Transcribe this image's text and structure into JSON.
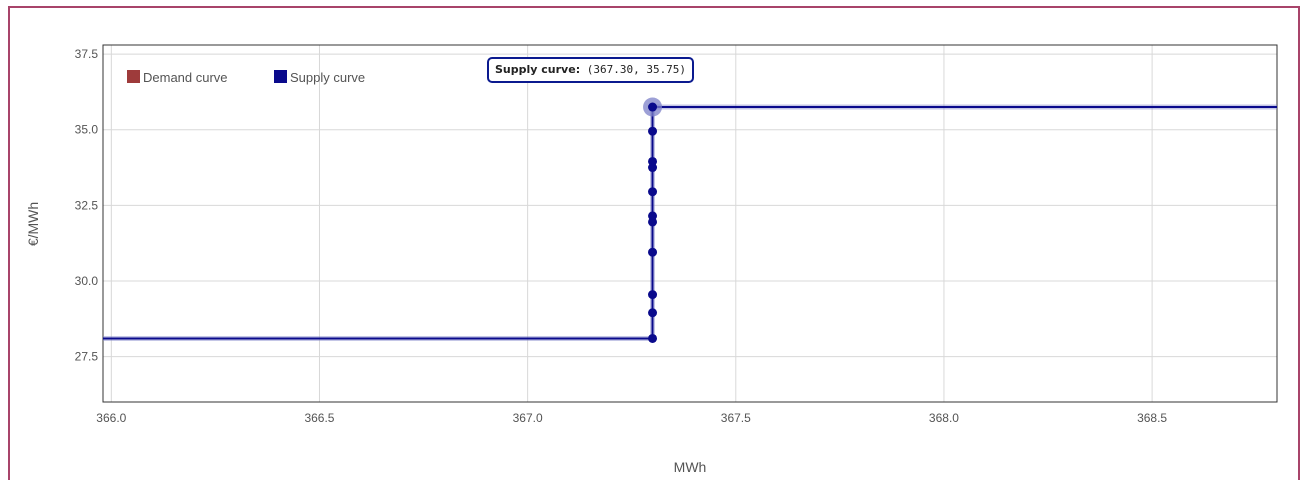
{
  "chart_data": {
    "type": "line",
    "title": "",
    "xlabel": "MWh",
    "ylabel": "€/MWh",
    "xlim": [
      365.98,
      368.8
    ],
    "ylim": [
      26.0,
      37.8
    ],
    "grid": true,
    "legend_position": "top-left",
    "x_ticks": [
      "366.0",
      "366.5",
      "367.0",
      "367.5",
      "368.0",
      "368.5"
    ],
    "y_ticks": [
      "27.5",
      "30.0",
      "32.5",
      "35.0",
      "37.5"
    ],
    "series": [
      {
        "name": "Demand curve",
        "color": "#9e3b3b",
        "x": [],
        "y": []
      },
      {
        "name": "Supply curve",
        "color": "#0a0a8c",
        "x": [
          365.98,
          367.3,
          367.3,
          367.3,
          367.3,
          367.3,
          367.3,
          367.3,
          367.3,
          367.3,
          367.3,
          367.3,
          367.3,
          367.3,
          368.8
        ],
        "y": [
          28.1,
          28.1,
          28.95,
          29.55,
          30.95,
          31.95,
          32.15,
          32.95,
          33.75,
          33.95,
          34.95,
          35.1,
          35.65,
          35.75,
          35.75
        ],
        "markers_y": [
          28.1,
          28.95,
          29.55,
          30.95,
          31.95,
          32.15,
          32.95,
          33.75,
          33.95,
          34.95
        ]
      }
    ],
    "hover": {
      "series_label": "Supply curve",
      "separator": ":",
      "value_text": " (367.30, 35.75)",
      "x": 367.3,
      "y": 35.75
    }
  }
}
